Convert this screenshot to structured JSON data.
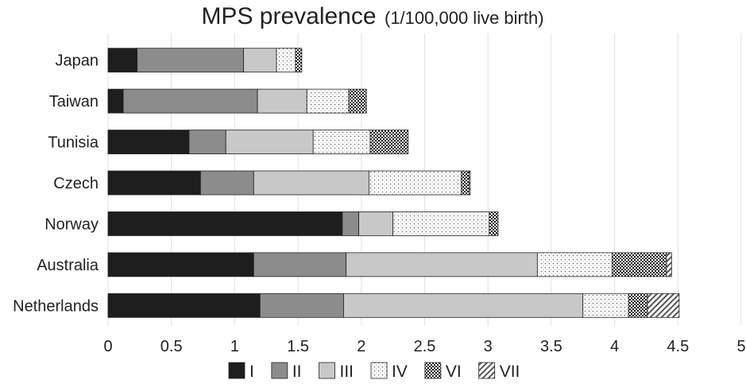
{
  "chart_data": {
    "type": "bar",
    "orientation": "horizontal",
    "stacked": true,
    "title": "MPS prevalence",
    "subtitle": "(1/100,000 live birth)",
    "categories": [
      "Japan",
      "Taiwan",
      "Tunisia",
      "Czech",
      "Norway",
      "Australia",
      "Netherlands"
    ],
    "series": [
      {
        "name": "I",
        "values": [
          0.23,
          0.12,
          0.64,
          0.73,
          1.85,
          1.15,
          1.2
        ]
      },
      {
        "name": "II",
        "values": [
          0.84,
          1.06,
          0.29,
          0.42,
          0.13,
          0.73,
          0.66
        ]
      },
      {
        "name": "III",
        "values": [
          0.26,
          0.39,
          0.69,
          0.91,
          0.27,
          1.51,
          1.89
        ]
      },
      {
        "name": "IV",
        "values": [
          0.15,
          0.33,
          0.45,
          0.73,
          0.76,
          0.59,
          0.36
        ]
      },
      {
        "name": "VI",
        "values": [
          0.05,
          0.14,
          0.3,
          0.06,
          0.07,
          0.43,
          0.15
        ]
      },
      {
        "name": "VII",
        "values": [
          0.0,
          0.0,
          0.0,
          0.01,
          0.0,
          0.04,
          0.25
        ]
      }
    ],
    "xlim": [
      0,
      5
    ],
    "xticks": [
      "0",
      "0.5",
      "1",
      "1.5",
      "2",
      "2.5",
      "3",
      "3.5",
      "4",
      "4.5",
      "5"
    ],
    "xlabel": "",
    "ylabel": "",
    "grid": "vertical",
    "legend": "bottom",
    "colors": {
      "I": "#1e1e1e",
      "II": "#8c8c8c",
      "III": "#c8c8c8",
      "IV": "pattern-dots",
      "VI": "pattern-checker",
      "VII": "pattern-diagonal"
    }
  }
}
